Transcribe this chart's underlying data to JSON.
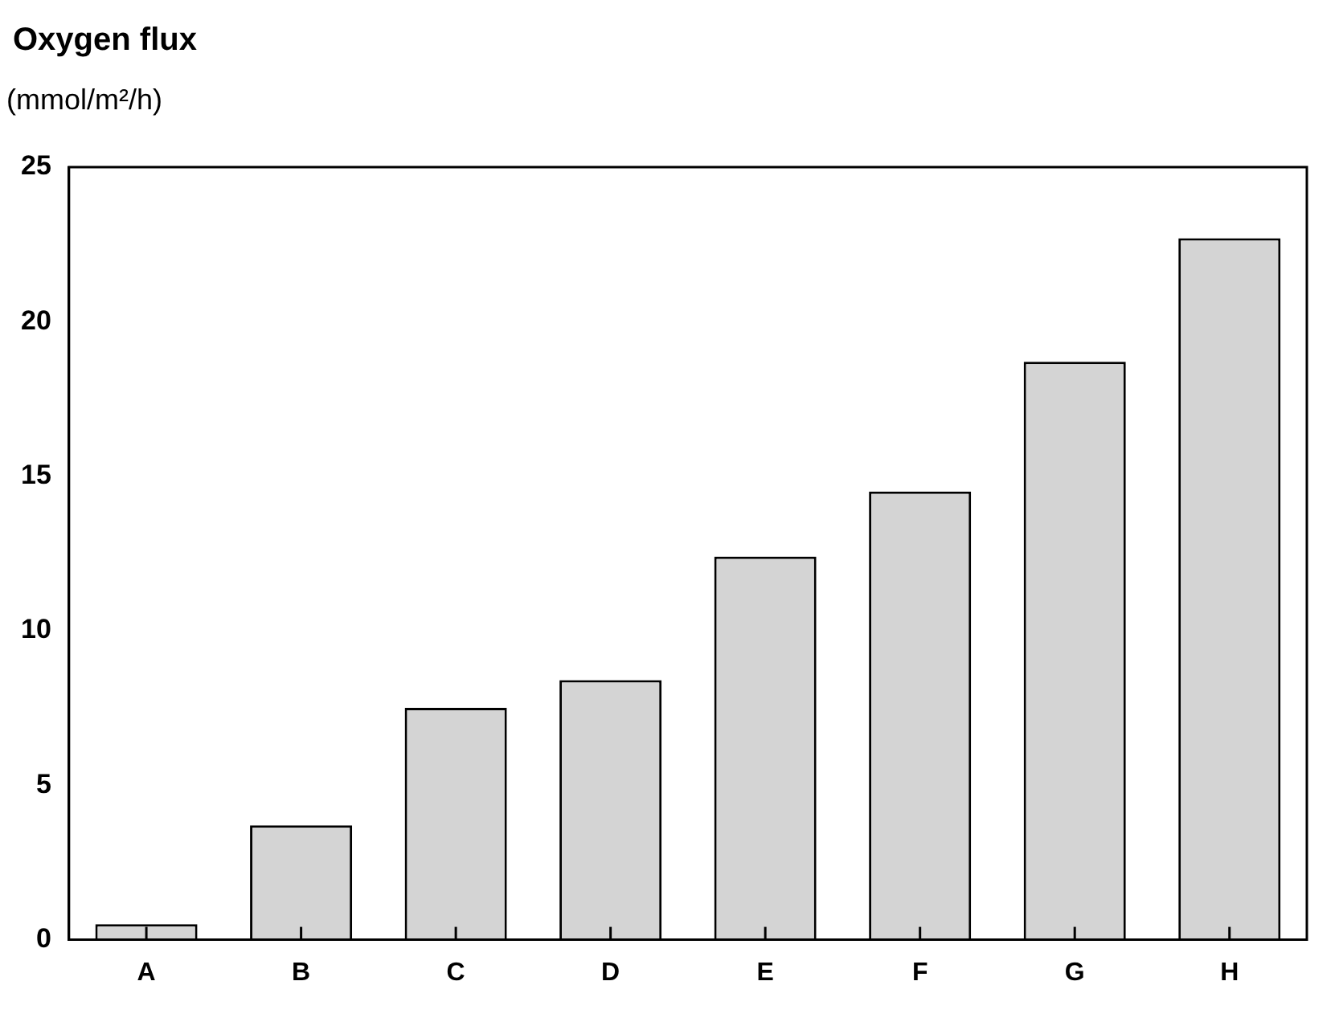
{
  "chart_data": {
    "type": "bar",
    "title": "Oxygen flux",
    "ylabel": "(mmol/m²/h)",
    "categories": [
      "A",
      "B",
      "C",
      "D",
      "E",
      "F",
      "G",
      "H"
    ],
    "values": [
      0.5,
      3.7,
      7.5,
      8.4,
      12.4,
      14.5,
      18.7,
      22.7
    ],
    "color": "#d4d4d4",
    "ylim": [
      0,
      25
    ],
    "yticks": [
      0,
      5,
      10,
      15,
      20,
      25
    ],
    "grid": false,
    "legend": false
  }
}
